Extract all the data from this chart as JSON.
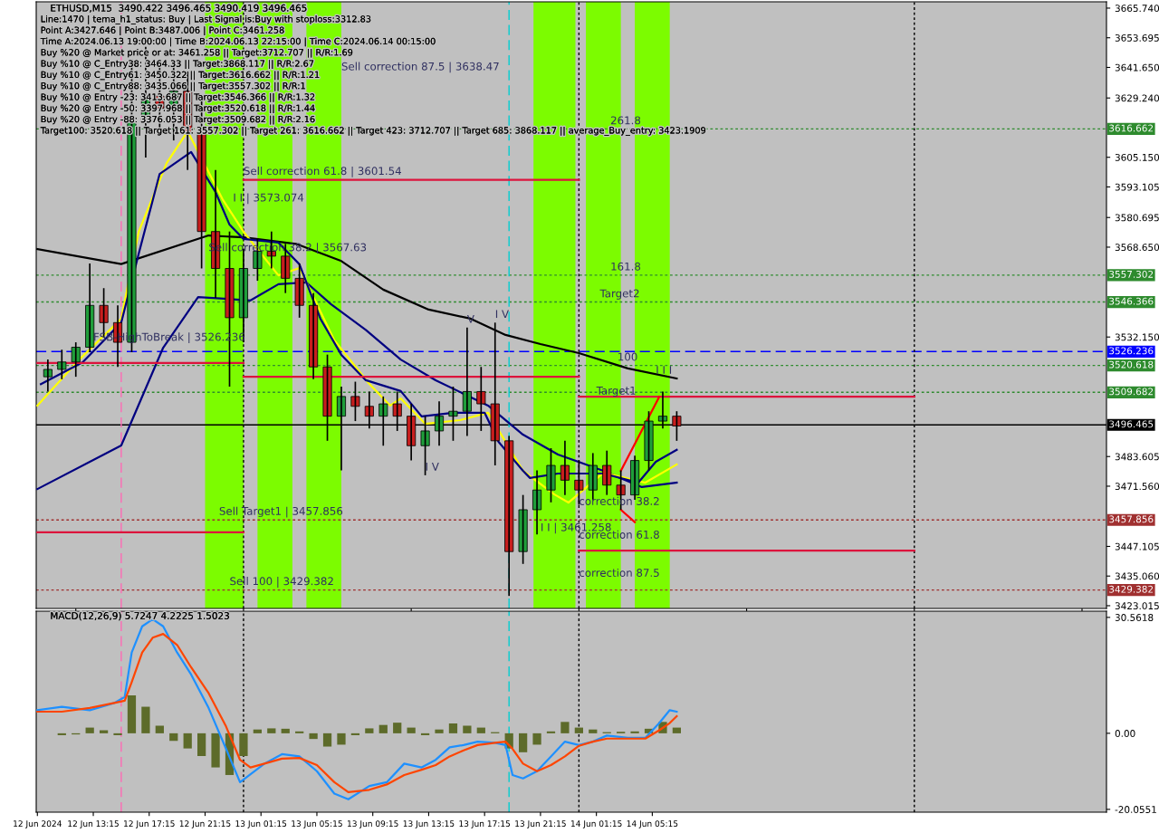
{
  "chart_data": [
    {
      "type": "candlestick",
      "title": "ETHUSD,M15  3490.422 3496.465 3490.419 3496.465",
      "x": [
        "2024-06-12T10:00",
        "2024-06-12T11:00",
        "2024-06-12T12:00",
        "2024-06-12T13:00",
        "2024-06-12T14:00",
        "2024-06-12T15:00",
        "2024-06-12T16:00",
        "2024-06-12T17:00",
        "2024-06-12T18:00",
        "2024-06-12T19:00",
        "2024-06-12T20:00",
        "2024-06-12T21:00",
        "2024-06-12T22:00",
        "2024-06-12T23:00",
        "2024-06-13T00:00",
        "2024-06-13T01:00",
        "2024-06-13T02:00",
        "2024-06-13T03:00",
        "2024-06-13T04:00",
        "2024-06-13T05:00",
        "2024-06-13T06:00",
        "2024-06-13T07:00",
        "2024-06-13T08:00",
        "2024-06-13T09:00",
        "2024-06-13T10:00",
        "2024-06-13T11:00",
        "2024-06-13T12:00",
        "2024-06-13T13:00",
        "2024-06-13T14:00",
        "2024-06-13T15:00",
        "2024-06-13T16:00",
        "2024-06-13T17:00",
        "2024-06-13T18:00",
        "2024-06-13T19:00",
        "2024-06-13T20:00",
        "2024-06-13T21:00",
        "2024-06-13T22:00",
        "2024-06-13T23:00",
        "2024-06-14T00:00",
        "2024-06-14T01:00",
        "2024-06-14T02:00",
        "2024-06-14T03:00",
        "2024-06-14T04:00",
        "2024-06-14T05:00",
        "2024-06-14T06:00",
        "2024-06-14T07:00"
      ],
      "ohlc": [
        [
          3516,
          3523,
          3510,
          3519
        ],
        [
          3519,
          3527,
          3515,
          3522
        ],
        [
          3522,
          3530,
          3516,
          3528
        ],
        [
          3528,
          3562,
          3526,
          3545
        ],
        [
          3545,
          3552,
          3532,
          3538
        ],
        [
          3538,
          3545,
          3520,
          3530
        ],
        [
          3530,
          3645,
          3526,
          3620
        ],
        [
          3620,
          3650,
          3605,
          3630
        ],
        [
          3630,
          3645,
          3615,
          3625
        ],
        [
          3625,
          3642,
          3612,
          3632
        ],
        [
          3632,
          3640,
          3600,
          3615
        ],
        [
          3615,
          3628,
          3560,
          3575
        ],
        [
          3575,
          3600,
          3548,
          3560
        ],
        [
          3560,
          3575,
          3512,
          3540
        ],
        [
          3540,
          3568,
          3530,
          3560
        ],
        [
          3560,
          3572,
          3555,
          3567
        ],
        [
          3567,
          3575,
          3560,
          3565
        ],
        [
          3565,
          3570,
          3550,
          3556
        ],
        [
          3556,
          3562,
          3540,
          3545
        ],
        [
          3545,
          3550,
          3515,
          3520
        ],
        [
          3520,
          3525,
          3490,
          3500
        ],
        [
          3500,
          3512,
          3478,
          3508
        ],
        [
          3508,
          3514,
          3498,
          3504
        ],
        [
          3504,
          3510,
          3495,
          3500
        ],
        [
          3500,
          3508,
          3488,
          3505
        ],
        [
          3505,
          3510,
          3494,
          3500
        ],
        [
          3500,
          3505,
          3482,
          3488
        ],
        [
          3488,
          3500,
          3476,
          3494
        ],
        [
          3494,
          3506,
          3488,
          3500
        ],
        [
          3500,
          3512,
          3490,
          3502
        ],
        [
          3502,
          3536,
          3492,
          3510
        ],
        [
          3510,
          3520,
          3494,
          3505
        ],
        [
          3505,
          3538,
          3480,
          3490
        ],
        [
          3490,
          3492,
          3427,
          3445
        ],
        [
          3445,
          3468,
          3440,
          3462
        ],
        [
          3462,
          3478,
          3452,
          3470
        ],
        [
          3470,
          3487,
          3465,
          3480
        ],
        [
          3480,
          3490,
          3468,
          3474
        ],
        [
          3474,
          3482,
          3464,
          3470
        ],
        [
          3470,
          3485,
          3466,
          3480
        ],
        [
          3480,
          3486,
          3468,
          3472
        ],
        [
          3472,
          3478,
          3462,
          3468
        ],
        [
          3468,
          3484,
          3466,
          3482
        ],
        [
          3482,
          3502,
          3478,
          3498
        ],
        [
          3498,
          3510,
          3495,
          3500
        ],
        [
          3500,
          3502,
          3490,
          3496
        ]
      ],
      "series": [
        {
          "type": "line",
          "color": "#000000",
          "x": [
            "2024-06-12T09:15",
            "2024-06-12T15:15",
            "2024-06-12T21:30",
            "2024-06-13T00:00",
            "2024-06-13T03:45",
            "2024-06-13T07:00",
            "2024-06-13T10:00",
            "2024-06-13T13:15",
            "2024-06-13T16:15",
            "2024-06-13T18:45",
            "2024-06-13T21:15",
            "2024-06-14T00:00",
            "2024-06-14T03:30",
            "2024-06-14T07:00"
          ],
          "values": [
            3567.9,
            3561.8,
            3573.4,
            3572.6,
            3570,
            3563,
            3551.4,
            3543.3,
            3539.6,
            3533,
            3529.3,
            3525.6,
            3519.4,
            3515.3
          ]
        },
        {
          "type": "line",
          "color": "#000080",
          "x": [
            "2024-06-12T09:15",
            "2024-06-12T15:15",
            "2024-06-12T18:15",
            "2024-06-12T20:45",
            "2024-06-13T00:30",
            "2024-06-13T02:30",
            "2024-06-13T04:30",
            "2024-06-13T06:15",
            "2024-06-13T08:45",
            "2024-06-13T11:15",
            "2024-06-13T13:45",
            "2024-06-13T17:30",
            "2024-06-13T20:00",
            "2024-06-13T22:30",
            "2024-06-14T00:30",
            "2024-06-14T01:45",
            "2024-06-14T04:30",
            "2024-06-14T07:00"
          ],
          "values": [
            3470.4,
            3488.1,
            3527.8,
            3548.4,
            3547,
            3553.6,
            3554.3,
            3545.5,
            3535,
            3523,
            3514.6,
            3504.3,
            3492.5,
            3484.4,
            3480.4,
            3477.8,
            3471.2,
            3473
          ]
        },
        {
          "type": "line",
          "color": "#ffff00",
          "x": [
            "2024-06-12T09:15",
            "2024-06-12T12:15",
            "2024-06-12T15:15",
            "2024-06-12T16:30",
            "2024-06-12T18:30",
            "2024-06-12T20:00",
            "2024-06-12T22:30",
            "2024-06-13T00:00",
            "2024-06-13T02:30",
            "2024-06-13T04:00",
            "2024-06-13T06:30",
            "2024-06-13T09:00",
            "2024-06-13T10:30",
            "2024-06-13T11:15",
            "2024-06-13T13:00",
            "2024-06-13T15:30",
            "2024-06-13T17:30",
            "2024-06-13T20:00",
            "2024-06-13T22:15",
            "2024-06-13T23:15",
            "2024-06-14T01:45",
            "2024-06-14T04:45",
            "2024-06-14T07:00"
          ],
          "values": [
            3504.3,
            3523,
            3539.6,
            3574.9,
            3602.8,
            3615.7,
            3588.1,
            3574.9,
            3557.2,
            3560.2,
            3530.8,
            3513.1,
            3504.3,
            3507.2,
            3496.9,
            3498.4,
            3501.4,
            3477.8,
            3468.2,
            3464.9,
            3477,
            3473,
            3480.4
          ]
        },
        {
          "type": "line",
          "color": "#000080",
          "x": [
            "2024-06-12T09:30",
            "2024-06-12T12:30",
            "2024-06-12T15:15",
            "2024-06-12T16:30",
            "2024-06-12T18:00",
            "2024-06-12T20:15",
            "2024-06-12T22:00",
            "2024-06-12T23:00",
            "2024-06-13T00:00",
            "2024-06-13T02:30",
            "2024-06-13T04:00",
            "2024-06-13T05:30",
            "2024-06-13T07:00",
            "2024-06-13T08:45",
            "2024-06-13T11:15",
            "2024-06-13T12:45",
            "2024-06-13T15:00",
            "2024-06-13T17:15",
            "2024-06-13T18:15",
            "2024-06-13T20:00",
            "2024-06-13T20:30",
            "2024-06-13T22:30",
            "2024-06-14T01:45",
            "2024-06-14T04:15",
            "2024-06-14T05:30",
            "2024-06-14T07:00"
          ],
          "values": [
            3513,
            3521.9,
            3538,
            3566,
            3598.4,
            3607.3,
            3591,
            3577.8,
            3572,
            3570.5,
            3561.7,
            3539.6,
            3524.9,
            3514.6,
            3510.2,
            3499.9,
            3501.4,
            3501.4,
            3489.6,
            3477.8,
            3474.9,
            3476.7,
            3476.7,
            3473,
            3481.5,
            3486.3
          ]
        },
        {
          "type": "line",
          "color": "#dc143c",
          "x": [
            "2024-06-12T09:15",
            "2024-06-13T00:00"
          ],
          "values": [
            3521.6,
            3521.6
          ]
        },
        {
          "type": "line",
          "color": "#dc143c",
          "x": [
            "2024-06-12T09:15",
            "2024-06-13T00:00"
          ],
          "values": [
            3452.8,
            3452.8
          ]
        },
        {
          "type": "line",
          "color": "#dc143c",
          "x": [
            "2024-06-13T00:00",
            "2024-06-14T00:00"
          ],
          "values": [
            3596,
            3596
          ]
        },
        {
          "type": "line",
          "color": "#dc143c",
          "x": [
            "2024-06-13T00:00",
            "2024-06-14T00:00"
          ],
          "values": [
            3516,
            3516
          ]
        },
        {
          "type": "line",
          "color": "#dc143c",
          "x": [
            "2024-06-14T00:00",
            "2024-06-15T00:00"
          ],
          "values": [
            3507.9,
            3507.9
          ]
        },
        {
          "type": "line",
          "color": "#dc143c",
          "x": [
            "2024-06-14T00:00",
            "2024-06-15T00:00"
          ],
          "values": [
            3445.4,
            3445.4
          ]
        },
        {
          "type": "line",
          "color": "#ff0000",
          "x": [
            "2024-06-14T03:00",
            "2024-06-14T05:45"
          ],
          "values": [
            3477.8,
            3507.9
          ]
        },
        {
          "type": "line",
          "color": "#ff0000",
          "x": [
            "2024-06-14T03:00",
            "2024-06-14T04:00"
          ],
          "values": [
            3462,
            3457
          ]
        }
      ],
      "xlim": [
        "2024-06-12T09:10",
        "2024-06-15T13:45"
      ],
      "ylim": [
        3421.9,
        3668.3
      ],
      "yticks": [
        3423.015,
        {
          "value": 3435.06,
          "label": "3435.060"
        },
        3447.105,
        {
          "value": 3471.56,
          "label": "3471.560"
        },
        3483.605,
        {
          "value": 3532.15,
          "label": "3532.150"
        },
        {
          "value": 3568.65,
          "label": "3568.650"
        },
        3580.695,
        3593.105,
        {
          "value": 3605.15,
          "label": "3605.150"
        },
        {
          "value": 3629.24,
          "label": "3629.240"
        },
        {
          "value": 3641.65,
          "label": "3641.650"
        },
        3653.695,
        {
          "value": 3665.74,
          "label": "3665.740"
        }
      ],
      "tick_labels": "y",
      "ref_lines": [
        {
          "axis": "y",
          "value": 3616.662,
          "label": "3616.662",
          "color": "#2e8b2e",
          "line_style": "dotted"
        },
        {
          "axis": "y",
          "value": 3557.302,
          "label": "3557.302",
          "color": "#2e8b2e",
          "line_style": "dotted"
        },
        {
          "axis": "y",
          "value": 3546.366,
          "label": "3546.366",
          "color": "#2e8b2e",
          "line_style": "dotted"
        },
        {
          "axis": "y",
          "value": 3526.236,
          "label": "3526.236",
          "color": "#0000ff",
          "line_style": "dashed"
        },
        {
          "axis": "y",
          "value": 3520.618,
          "label": "3520.618",
          "color": "#2e8b2e",
          "line_style": "dotted"
        },
        {
          "axis": "y",
          "value": 3509.682,
          "label": "3509.682",
          "color": "#2e8b2e",
          "line_style": "dotted"
        },
        {
          "axis": "y",
          "value": 3496.465,
          "label": "3496.465",
          "color": "#000000",
          "line_style": "solid"
        },
        {
          "axis": "y",
          "value": 3457.856,
          "label": "3457.856",
          "color": "#a03030",
          "line_style": "dotted"
        },
        {
          "axis": "y",
          "value": 3429.382,
          "label": "3429.382",
          "color": "#a03030",
          "line_style": "dotted"
        },
        {
          "axis": "x",
          "value": "2024-06-12T15:15",
          "color": "#ff69b4",
          "line_style": "dashed"
        },
        {
          "axis": "x",
          "value": "2024-06-13T00:00",
          "color": "#000000",
          "line_style": "dotted"
        },
        {
          "axis": "x",
          "value": "2024-06-13T19:00",
          "color": "#00ced1",
          "line_style": "dashed"
        },
        {
          "axis": "x",
          "value": "2024-06-14T00:00",
          "color": "#000000",
          "line_style": "dotted"
        },
        {
          "axis": "x",
          "value": "2024-06-15T00:00",
          "color": "#000000",
          "line_style": "dotted"
        }
      ],
      "bands": [
        {
          "axis": "x",
          "from": "2024-06-12T21:15",
          "to": "2024-06-13T00:00",
          "color": "#7cfc00"
        },
        {
          "axis": "x",
          "from": "2024-06-13T01:00",
          "to": "2024-06-13T03:30",
          "color": "#7cfc00"
        },
        {
          "axis": "x",
          "from": "2024-06-13T04:30",
          "to": "2024-06-13T07:00",
          "color": "#7cfc00"
        },
        {
          "axis": "x",
          "from": "2024-06-13T20:45",
          "to": "2024-06-13T23:45",
          "color": "#7cfc00"
        },
        {
          "axis": "x",
          "from": "2024-06-14T00:30",
          "to": "2024-06-14T03:00",
          "color": "#7cfc00"
        },
        {
          "axis": "x",
          "from": "2024-06-14T04:00",
          "to": "2024-06-14T06:30",
          "color": "#7cfc00"
        }
      ],
      "annotations": [
        "Line:1470 | tema_h1_status: Buy | Last Signal is:Buy with stoploss:3312.83",
        "Point A:3427.646 | Point B:3487.006 | Point C:3461.258",
        "Time A:2024.06.13 19:00:00 | Time B:2024.06.13 22:15:00 | Time C:2024.06.14 00:15:00",
        "Buy %20 @ Market price or at: 3461.258 || Target:3712.707 || R/R:1.69",
        "Buy %10 @ C_Entry38: 3464.33 || Target:3868.117 || R/R:2.67",
        "Buy %10 @ C_Entry61: 3450.322 || Target:3616.662 || R/R:1.21",
        "Buy %10 @ C_Entry88: 3435.066 || Target:3557.302 || R/R:1",
        "Buy %10 @ Entry -23: 3413.687 || Target:3546.366 || R/R:1.32",
        "Buy %20 @ Entry -50: 3397.968 || Target:3520.618 || R/R:1.44",
        "Buy %20 @ Entry -88: 3376.053 || Target:3509.682 || R/R:2.16",
        "Target100: 3520.618 || Target 161: 3557.302 || Target 261: 3616.662 || Target 423: 3712.707 || Target 685: 3868.117 || average_Buy_entry: 3423.1909",
        {
          "text": "Sell correction 87.5 | 3638.47",
          "x": "2024-06-13T07:00",
          "y": 3638.47
        },
        {
          "text": "Sell correction 61.8 | 3601.54",
          "x": "2024-06-13T00:00",
          "y": 3596
        },
        {
          "text": "I I | 3573.074",
          "x": "2024-06-12T23:15",
          "y": 3585.2
        },
        {
          "text": "Sell correction 38.2 | 3567.63",
          "x": "2024-06-12T21:30",
          "y": 3565
        },
        {
          "text": "FSB-HighToBreak | 3526.236",
          "x": "2024-06-12T13:15",
          "y": 3528.6
        },
        {
          "text": "Sell Target1 | 3457.856",
          "x": "2024-06-12T22:15",
          "y": 3457.856
        },
        {
          "text": "Sell 100 | 3429.382",
          "x": "2024-06-12T23:00",
          "y": 3429.382
        },
        {
          "text": "261.8",
          "x": "2024-06-14T02:15",
          "y": 3616.662
        },
        {
          "text": "161.8",
          "x": "2024-06-14T02:15",
          "y": 3557.302
        },
        {
          "text": "Target2",
          "x": "2024-06-14T01:30",
          "y": 3546.366
        },
        {
          "text": "100",
          "x": "2024-06-14T02:45",
          "y": 3520.618
        },
        {
          "text": "Target1",
          "x": "2024-06-14T01:15",
          "y": 3506.9
        },
        {
          "text": "correction 38.2",
          "x": "2024-06-14T00:00",
          "y": 3462
        },
        {
          "text": "I I | 3461.258",
          "x": "2024-06-13T21:15",
          "y": 3451.3
        },
        {
          "text": "correction 61.8",
          "x": "2024-06-14T00:00",
          "y": 3448.4
        },
        {
          "text": "correction 87.5",
          "x": "2024-06-14T00:00",
          "y": 3432.9
        },
        {
          "text": "V",
          "x": "2024-06-13T16:00",
          "y": 3536
        },
        {
          "text": "I V",
          "x": "2024-06-13T18:00",
          "y": 3538
        },
        {
          "text": "I V",
          "x": "2024-06-13T13:00",
          "y": 3476
        },
        {
          "text": "I I I",
          "x": "2024-06-14T05:30",
          "y": 3515.3
        }
      ]
    },
    {
      "type": "bar",
      "title": "MACD(12,26,9) 5.7247 4.2225 1.5023",
      "series": [
        {
          "type": "bar",
          "color": "#5d6b2a",
          "x": [
            "2024-06-12T10:00",
            "2024-06-12T11:00",
            "2024-06-12T12:00",
            "2024-06-12T13:00",
            "2024-06-12T14:00",
            "2024-06-12T15:00",
            "2024-06-12T16:00",
            "2024-06-12T17:00",
            "2024-06-12T18:00",
            "2024-06-12T19:00",
            "2024-06-12T20:00",
            "2024-06-12T21:00",
            "2024-06-12T22:00",
            "2024-06-12T23:00",
            "2024-06-13T00:00",
            "2024-06-13T01:00",
            "2024-06-13T02:00",
            "2024-06-13T03:00",
            "2024-06-13T04:00",
            "2024-06-13T05:00",
            "2024-06-13T06:00",
            "2024-06-13T07:00",
            "2024-06-13T08:00",
            "2024-06-13T09:00",
            "2024-06-13T10:00",
            "2024-06-13T11:00",
            "2024-06-13T12:00",
            "2024-06-13T13:00",
            "2024-06-13T14:00",
            "2024-06-13T15:00",
            "2024-06-13T16:00",
            "2024-06-13T17:00",
            "2024-06-13T18:00",
            "2024-06-13T19:00",
            "2024-06-13T20:00",
            "2024-06-13T21:00",
            "2024-06-13T22:00",
            "2024-06-13T23:00",
            "2024-06-14T00:00",
            "2024-06-14T01:00",
            "2024-06-14T02:00",
            "2024-06-14T03:00",
            "2024-06-14T04:00",
            "2024-06-14T05:00",
            "2024-06-14T06:00",
            "2024-06-14T07:00"
          ],
          "values": [
            0,
            -0.5,
            -0.3,
            1.5,
            0.8,
            -0.5,
            10,
            7,
            2,
            -2,
            -4,
            -6,
            -9,
            -11,
            -6,
            1,
            1.3,
            1.2,
            0.5,
            -1.5,
            -3.5,
            -3,
            -0.5,
            1.3,
            2.2,
            2.8,
            1.5,
            -0.5,
            1,
            2.6,
            2,
            1.5,
            0.3,
            -4,
            -5,
            -3,
            0.5,
            3,
            1.5,
            1,
            0.3,
            0.4,
            0.5,
            1.2,
            3,
            1.5
          ]
        },
        {
          "type": "line",
          "color": "#1e90ff",
          "x": [
            "2024-06-12T09:15",
            "2024-06-12T11:00",
            "2024-06-12T13:00",
            "2024-06-12T14:45",
            "2024-06-12T15:30",
            "2024-06-12T16:00",
            "2024-06-12T16:45",
            "2024-06-12T17:30",
            "2024-06-12T18:15",
            "2024-06-12T19:15",
            "2024-06-12T20:15",
            "2024-06-12T21:30",
            "2024-06-12T22:45",
            "2024-06-12T23:45",
            "2024-06-13T00:30",
            "2024-06-13T01:30",
            "2024-06-13T02:45",
            "2024-06-13T04:00",
            "2024-06-13T05:15",
            "2024-06-13T06:30",
            "2024-06-13T07:30",
            "2024-06-13T09:00",
            "2024-06-13T10:15",
            "2024-06-13T11:30",
            "2024-06-13T12:45",
            "2024-06-13T13:45",
            "2024-06-13T14:45",
            "2024-06-13T15:45",
            "2024-06-13T16:45",
            "2024-06-13T18:00",
            "2024-06-13T18:45",
            "2024-06-13T19:15",
            "2024-06-13T20:00",
            "2024-06-13T21:00",
            "2024-06-13T22:00",
            "2024-06-13T23:00",
            "2024-06-14T00:00",
            "2024-06-14T01:00",
            "2024-06-14T02:00",
            "2024-06-14T03:30",
            "2024-06-14T04:45",
            "2024-06-14T05:45",
            "2024-06-14T06:30",
            "2024-06-14T07:00"
          ],
          "values": [
            6.1,
            7.0,
            6.1,
            8.0,
            9.6,
            21.3,
            28.2,
            30.1,
            28.2,
            21.3,
            15.5,
            6.7,
            -4.1,
            -12.9,
            -10.8,
            -8.0,
            -5.5,
            -6.1,
            -10.0,
            -15.9,
            -17.4,
            -13.9,
            -12.9,
            -8.0,
            -9.0,
            -7.0,
            -3.7,
            -3.1,
            -2.2,
            -2.5,
            -3.1,
            -11.0,
            -11.9,
            -10.0,
            -6.1,
            -2.2,
            -3.1,
            -2.2,
            -0.6,
            -1.2,
            -1.2,
            2.7,
            6.1,
            5.7
          ]
        },
        {
          "type": "line",
          "color": "#ff4500",
          "x": [
            "2024-06-12T09:15",
            "2024-06-12T11:00",
            "2024-06-12T13:00",
            "2024-06-12T14:45",
            "2024-06-12T15:30",
            "2024-06-12T16:00",
            "2024-06-12T16:45",
            "2024-06-12T17:30",
            "2024-06-12T18:15",
            "2024-06-12T19:15",
            "2024-06-12T20:15",
            "2024-06-12T21:30",
            "2024-06-12T22:45",
            "2024-06-12T23:45",
            "2024-06-13T00:30",
            "2024-06-13T01:30",
            "2024-06-13T02:45",
            "2024-06-13T04:00",
            "2024-06-13T05:15",
            "2024-06-13T06:30",
            "2024-06-13T07:30",
            "2024-06-13T09:00",
            "2024-06-13T10:15",
            "2024-06-13T11:30",
            "2024-06-13T12:45",
            "2024-06-13T13:45",
            "2024-06-13T14:45",
            "2024-06-13T15:45",
            "2024-06-13T16:45",
            "2024-06-13T18:00",
            "2024-06-13T18:45",
            "2024-06-13T19:15",
            "2024-06-13T20:00",
            "2024-06-13T21:00",
            "2024-06-13T22:00",
            "2024-06-13T23:00",
            "2024-06-14T00:00",
            "2024-06-14T01:00",
            "2024-06-14T02:00",
            "2024-06-14T03:30",
            "2024-06-14T04:45",
            "2024-06-14T05:45",
            "2024-06-14T06:30",
            "2024-06-14T07:00"
          ],
          "values": [
            5.7,
            5.7,
            6.7,
            8.0,
            8.6,
            13.5,
            21.3,
            25.2,
            26.2,
            23.3,
            17.4,
            10.6,
            1.8,
            -7.0,
            -9.0,
            -8.0,
            -6.7,
            -6.5,
            -8.4,
            -12.9,
            -15.5,
            -14.9,
            -13.5,
            -11.0,
            -9.6,
            -8.4,
            -6.1,
            -4.5,
            -3.1,
            -2.5,
            -2.2,
            -4.1,
            -8.0,
            -10.0,
            -8.4,
            -6.1,
            -3.3,
            -2.2,
            -1.4,
            -1.4,
            -1.4,
            0.8,
            2.7,
            4.5
          ]
        }
      ],
      "xlim": [
        "2024-06-12T09:10",
        "2024-06-15T13:45"
      ],
      "xticks": [
        {
          "value": "2024-06-12T09:15",
          "label": "12 Jun 2024"
        },
        {
          "value": "2024-06-12T13:15",
          "label": "12 Jun 13:15"
        },
        {
          "value": "2024-06-12T17:15",
          "label": "12 Jun 17:15"
        },
        {
          "value": "2024-06-12T21:15",
          "label": "12 Jun 21:15"
        },
        {
          "value": "2024-06-13T01:15",
          "label": "13 Jun 01:15"
        },
        {
          "value": "2024-06-13T05:15",
          "label": "13 Jun 05:15"
        },
        {
          "value": "2024-06-13T09:15",
          "label": "13 Jun 09:15"
        },
        {
          "value": "2024-06-13T13:15",
          "label": "13 Jun 13:15"
        },
        {
          "value": "2024-06-13T17:15",
          "label": "13 Jun 17:15"
        },
        {
          "value": "2024-06-13T21:15",
          "label": "13 Jun 21:15"
        },
        {
          "value": "2024-06-14T01:15",
          "label": "14 Jun 01:15"
        },
        {
          "value": "2024-06-14T05:15",
          "label": "14 Jun 05:15"
        }
      ],
      "ylim": [
        -20.8,
        32.2
      ],
      "yticks": [
        30.5618,
        {
          "value": 0,
          "label": "0.00"
        },
        -20.0551
      ],
      "ref_lines": [
        {
          "axis": "x",
          "value": "2024-06-12T15:15",
          "color": "#ff69b4",
          "line_style": "dashed"
        },
        {
          "axis": "x",
          "value": "2024-06-13T00:00",
          "color": "#000000",
          "line_style": "dotted"
        },
        {
          "axis": "x",
          "value": "2024-06-13T19:00",
          "color": "#00ced1",
          "line_style": "dashed"
        },
        {
          "axis": "x",
          "value": "2024-06-14T00:00",
          "color": "#000000",
          "line_style": "dotted"
        },
        {
          "axis": "x",
          "value": "2024-06-15T00:00",
          "color": "#000000",
          "line_style": "dotted"
        }
      ]
    }
  ]
}
